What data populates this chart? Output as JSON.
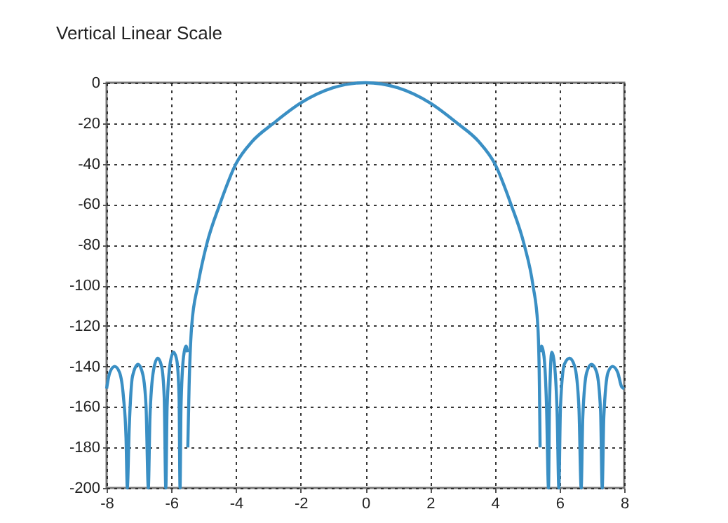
{
  "chart_data": {
    "type": "line",
    "title": "Vertical Linear Scale",
    "xlim": [
      -8,
      8
    ],
    "xticks": [
      -8,
      -6,
      -4,
      -2,
      0,
      2,
      4,
      6,
      8
    ],
    "ylim": [
      -200,
      0
    ],
    "yticks": [
      -200,
      -180,
      -160,
      -140,
      -120,
      -100,
      -80,
      -60,
      -40,
      -20,
      0
    ],
    "grid": true,
    "series": [
      {
        "color": "#3a8fc4",
        "x": [
          -8,
          -7.9,
          -7.75,
          -7.6,
          -7.48,
          -7.4,
          -7.36,
          -7.3,
          -7.2,
          -7.03,
          -6.88,
          -6.78,
          -6.71,
          -6.66,
          -6.55,
          -6.42,
          -6.3,
          -6.22,
          -6.17,
          -6.13,
          -6.03,
          -5.93,
          -5.83,
          -5.76,
          -5.73,
          -5.7,
          -5.62,
          -5.54,
          -5.5
        ],
        "values": [
          -151,
          -143,
          -140,
          -143,
          -155,
          -175,
          -200,
          -170,
          -145,
          -139,
          -144,
          -160,
          -200,
          -165,
          -142,
          -136,
          -140,
          -155,
          -200,
          -160,
          -138,
          -133,
          -137,
          -155,
          -200,
          -160,
          -135,
          -130,
          -133
        ]
      },
      {
        "color": "#3a8fc4",
        "x": [
          -5.49,
          -5.45,
          -5.37,
          -5.18,
          -4.91,
          -4.5,
          -4,
          -3.5,
          -2.84,
          -2,
          -1,
          0,
          1,
          2,
          2.84,
          3.5,
          4,
          4.5,
          4.91,
          5.18,
          5.33,
          5.38,
          5.4
        ],
        "values": [
          -180,
          -150,
          -120,
          -100,
          -80,
          -60,
          -40,
          -29,
          -20,
          -10,
          -2.5,
          0,
          -2.5,
          -10,
          -20,
          -29,
          -40,
          -60,
          -80,
          -100,
          -120,
          -150,
          -180
        ]
      },
      {
        "color": "#3a8fc4",
        "x": [
          5.42,
          5.44,
          5.52,
          5.6,
          5.66,
          5.69,
          5.76,
          5.85,
          5.93,
          5.98,
          6.03,
          6.15,
          6.31,
          6.47,
          6.6,
          6.67,
          6.72,
          6.84,
          6.99,
          7.15,
          7.27,
          7.32,
          7.37,
          7.5,
          7.64,
          7.8,
          7.92,
          8
        ],
        "values": [
          -133,
          -130,
          -135,
          -160,
          -200,
          -160,
          -133,
          -140,
          -165,
          -200,
          -160,
          -139,
          -136,
          -140,
          -160,
          -200,
          -165,
          -143,
          -139,
          -143,
          -162,
          -200,
          -165,
          -143,
          -140,
          -143,
          -150,
          -151
        ]
      }
    ]
  }
}
